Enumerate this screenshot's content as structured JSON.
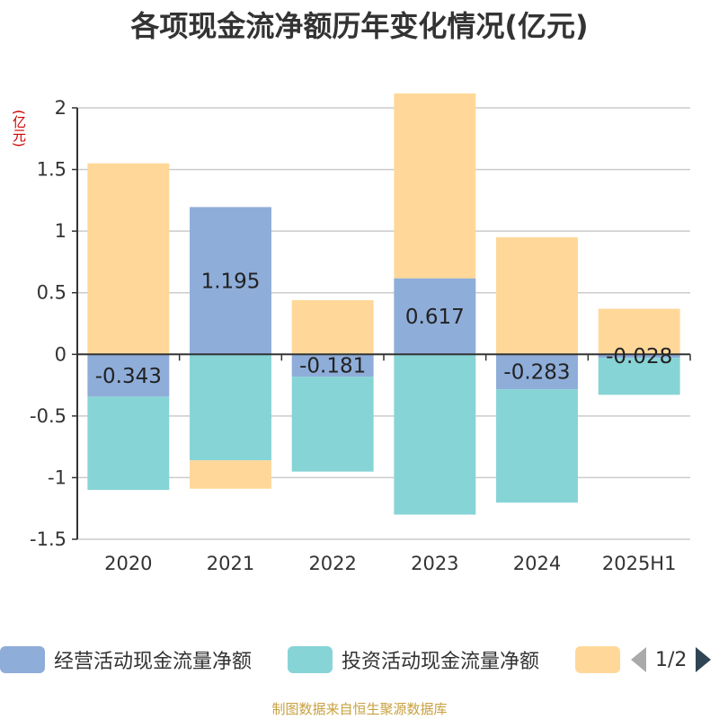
{
  "colors": {
    "operating": "#8eadd9",
    "investing": "#87d4d6",
    "financing": "#ffd899",
    "axis": "#333333",
    "grid": "#cccccc",
    "unit": "#cc0000",
    "source": "#c8a040"
  },
  "header": {
    "title": "各项现金流净额历年变化情况(亿元)",
    "unit_label": "(亿元)"
  },
  "legend": {
    "items": [
      {
        "label": "经营活动现金流量净额",
        "color_key": "operating"
      },
      {
        "label": "投资活动现金流量净额",
        "color_key": "investing"
      },
      {
        "label": "",
        "color_key": "financing"
      }
    ],
    "page": "1/2",
    "prev_icon": "triangle-left-icon",
    "next_icon": "triangle-right-icon"
  },
  "footer": {
    "source": "制图数据来自恒生聚源数据库"
  },
  "chart_data": {
    "type": "bar",
    "stacked": true,
    "categories": [
      "2020",
      "2021",
      "2022",
      "2023",
      "2024",
      "2025H1"
    ],
    "series": [
      {
        "name": "经营活动现金流量净额",
        "color_key": "operating",
        "values": [
          -0.343,
          1.195,
          -0.181,
          0.617,
          -0.283,
          -0.028
        ],
        "labels": [
          "-0.343",
          "1.195",
          "-0.181",
          "0.617",
          "-0.283",
          "-0.028"
        ]
      },
      {
        "name": "投资活动现金流量净额",
        "color_key": "investing",
        "values": [
          -0.757,
          -0.86,
          -0.77,
          -1.3,
          -0.92,
          -0.3
        ]
      },
      {
        "name": "",
        "color_key": "financing",
        "values": [
          1.55,
          -0.23,
          0.44,
          1.5,
          0.95,
          0.37
        ]
      }
    ],
    "yticks": [
      2,
      1.5,
      1,
      0.5,
      0,
      -0.5,
      -1,
      -1.5
    ],
    "ytick_labels": [
      "2",
      "1.5",
      "1",
      "0.5",
      "0",
      "-0.5",
      "-1",
      "-1.5"
    ],
    "ylim": [
      -1.5,
      2
    ],
    "grid": true,
    "legend_position": "bottom"
  }
}
